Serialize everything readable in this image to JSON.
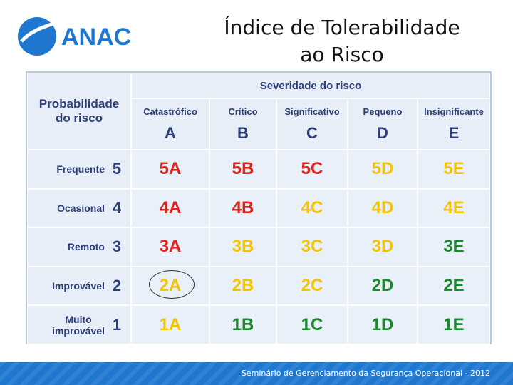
{
  "logo": {
    "text": "ANAC",
    "colors": {
      "primary": "#1f77d0"
    }
  },
  "title": {
    "line1": "Índice de Tolerabilidade",
    "line2": "ao Risco"
  },
  "matrix": {
    "probability_header": {
      "line1": "Probabilidade",
      "line2": "do risco"
    },
    "severity_header": "Severidade do risco",
    "severity_columns": [
      {
        "label": "Catastrófico",
        "letter": "A"
      },
      {
        "label": "Crítico",
        "letter": "B"
      },
      {
        "label": "Significativo",
        "letter": "C"
      },
      {
        "label": "Pequeno",
        "letter": "D"
      },
      {
        "label": "Insignificante",
        "letter": "E"
      }
    ],
    "rows": [
      {
        "label_line1": "Frequente",
        "label_line2": "",
        "number": "5",
        "cells": [
          "5A",
          "5B",
          "5C",
          "5D",
          "5E"
        ],
        "colors": [
          "red",
          "red",
          "red",
          "yellow",
          "yellow"
        ]
      },
      {
        "label_line1": "Ocasional",
        "label_line2": "",
        "number": "4",
        "cells": [
          "4A",
          "4B",
          "4C",
          "4D",
          "4E"
        ],
        "colors": [
          "red",
          "red",
          "yellow",
          "yellow",
          "yellow"
        ]
      },
      {
        "label_line1": "Remoto",
        "label_line2": "",
        "number": "3",
        "cells": [
          "3A",
          "3B",
          "3C",
          "3D",
          "3E"
        ],
        "colors": [
          "red",
          "yellow",
          "yellow",
          "yellow",
          "green"
        ]
      },
      {
        "label_line1": "Improvável",
        "label_line2": "",
        "number": "2",
        "cells": [
          "2A",
          "2B",
          "2C",
          "2D",
          "2E"
        ],
        "colors": [
          "yellow",
          "yellow",
          "yellow",
          "green",
          "green"
        ]
      },
      {
        "label_line1": "Muito",
        "label_line2": "improvável",
        "number": "1",
        "cells": [
          "1A",
          "1B",
          "1C",
          "1D",
          "1E"
        ],
        "colors": [
          "yellow",
          "green",
          "green",
          "green",
          "green"
        ]
      }
    ],
    "highlighted_cell": "2A",
    "palette": {
      "red": "#e2231a",
      "yellow": "#f5c400",
      "green": "#1b8a2e",
      "header_text": "#2c3e7a",
      "cell_bg": "#eaf0f9",
      "grid": "#c9d8ec"
    }
  },
  "footer": {
    "text": "Seminário de Gerenciamento da Segurança Operacional - 2012",
    "color": "#1f77d0"
  }
}
